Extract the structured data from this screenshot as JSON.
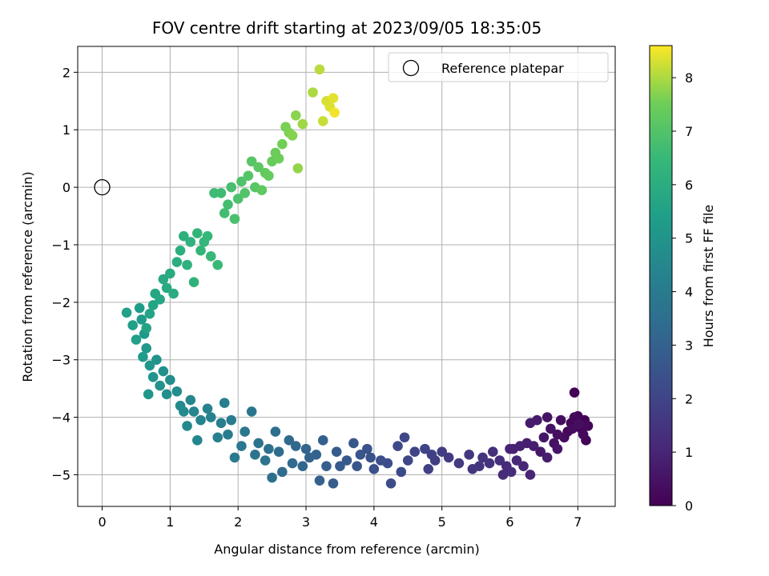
{
  "chart_data": {
    "type": "scatter",
    "title": "FOV centre drift starting at 2023/09/05 18:35:05",
    "xlabel": "Angular distance from reference (arcmin)",
    "ylabel": "Rotation from reference (arcmin)",
    "xlim": [
      -0.36,
      7.55
    ],
    "ylim": [
      -5.55,
      2.45
    ],
    "x_ticks": [
      0,
      1,
      2,
      3,
      4,
      5,
      6,
      7
    ],
    "y_ticks": [
      -5,
      -4,
      -3,
      -2,
      -1,
      0,
      1,
      2
    ],
    "grid": true,
    "legend": {
      "position": "top-right",
      "entries": [
        "Reference platepar"
      ]
    },
    "reference_point": {
      "x": 0,
      "y": 0,
      "label": "Reference platepar"
    },
    "colorbar": {
      "label": "Hours from first FF file",
      "colormap": "viridis",
      "range": [
        0,
        8.6
      ],
      "ticks": [
        0,
        1,
        2,
        3,
        4,
        5,
        6,
        7,
        8
      ]
    },
    "points_desc": "each point: [x arcmin, y arcmin, hours from first FF file]",
    "points": [
      [
        7.1,
        -4.05,
        0.0
      ],
      [
        6.95,
        -3.57,
        0.02
      ],
      [
        7.05,
        -4.2,
        0.05
      ],
      [
        7.12,
        -4.4,
        0.08
      ],
      [
        6.9,
        -4.1,
        0.1
      ],
      [
        7.0,
        -3.98,
        0.13
      ],
      [
        6.85,
        -4.25,
        0.16
      ],
      [
        7.15,
        -4.15,
        0.18
      ],
      [
        6.95,
        -4.0,
        0.21
      ],
      [
        7.08,
        -4.3,
        0.24
      ],
      [
        6.8,
        -4.35,
        0.27
      ],
      [
        6.92,
        -4.2,
        0.3
      ],
      [
        6.75,
        -4.05,
        0.33
      ],
      [
        7.02,
        -4.12,
        0.36
      ],
      [
        6.7,
        -4.3,
        0.4
      ],
      [
        6.65,
        -4.45,
        0.44
      ],
      [
        6.6,
        -4.2,
        0.48
      ],
      [
        6.55,
        -4.0,
        0.52
      ],
      [
        6.7,
        -4.55,
        0.56
      ],
      [
        6.5,
        -4.35,
        0.6
      ],
      [
        6.45,
        -4.6,
        0.64
      ],
      [
        6.4,
        -4.05,
        0.68
      ],
      [
        6.3,
        -4.1,
        0.72
      ],
      [
        6.35,
        -4.5,
        0.76
      ],
      [
        6.55,
        -4.7,
        0.8
      ],
      [
        6.25,
        -4.45,
        0.84
      ],
      [
        6.15,
        -4.5,
        0.88
      ],
      [
        6.05,
        -4.55,
        0.92
      ],
      [
        6.0,
        -4.55,
        0.96
      ],
      [
        6.3,
        -5.0,
        1.0
      ],
      [
        6.2,
        -4.85,
        1.05
      ],
      [
        6.1,
        -4.75,
        1.1
      ],
      [
        5.95,
        -4.85,
        1.15
      ],
      [
        5.9,
        -5.0,
        1.2
      ],
      [
        6.02,
        -4.95,
        1.25
      ],
      [
        5.85,
        -4.75,
        1.3
      ],
      [
        5.75,
        -4.6,
        1.35
      ],
      [
        5.7,
        -4.8,
        1.4
      ],
      [
        5.6,
        -4.7,
        1.45
      ],
      [
        5.55,
        -4.85,
        1.5
      ],
      [
        5.45,
        -4.9,
        1.55
      ],
      [
        5.4,
        -4.65,
        1.6
      ],
      [
        5.25,
        -4.8,
        1.65
      ],
      [
        5.1,
        -4.7,
        1.7
      ],
      [
        5.0,
        -4.6,
        1.75
      ],
      [
        4.9,
        -4.75,
        1.8
      ],
      [
        4.8,
        -4.9,
        1.85
      ],
      [
        4.85,
        -4.65,
        1.9
      ],
      [
        4.75,
        -4.55,
        1.95
      ],
      [
        4.6,
        -4.6,
        2.0
      ],
      [
        4.5,
        -4.75,
        2.05
      ],
      [
        4.45,
        -4.35,
        2.1
      ],
      [
        4.35,
        -4.5,
        2.15
      ],
      [
        4.4,
        -4.95,
        2.2
      ],
      [
        4.25,
        -5.15,
        2.25
      ],
      [
        4.2,
        -4.8,
        2.3
      ],
      [
        4.1,
        -4.75,
        2.35
      ],
      [
        4.0,
        -4.9,
        2.4
      ],
      [
        3.95,
        -4.7,
        2.45
      ],
      [
        3.9,
        -4.55,
        2.5
      ],
      [
        3.8,
        -4.65,
        2.55
      ],
      [
        3.75,
        -4.85,
        2.6
      ],
      [
        3.7,
        -4.45,
        2.65
      ],
      [
        3.6,
        -4.75,
        2.7
      ],
      [
        3.5,
        -4.85,
        2.75
      ],
      [
        3.45,
        -4.6,
        2.8
      ],
      [
        3.4,
        -5.15,
        2.85
      ],
      [
        3.3,
        -4.85,
        2.9
      ],
      [
        3.25,
        -4.4,
        2.95
      ],
      [
        3.2,
        -5.1,
        3.0
      ],
      [
        3.15,
        -4.65,
        3.05
      ],
      [
        3.05,
        -4.7,
        3.1
      ],
      [
        3.0,
        -4.55,
        3.15
      ],
      [
        2.95,
        -4.85,
        3.2
      ],
      [
        2.85,
        -4.5,
        3.25
      ],
      [
        2.8,
        -4.8,
        3.3
      ],
      [
        2.75,
        -4.4,
        3.35
      ],
      [
        2.65,
        -4.95,
        3.4
      ],
      [
        2.6,
        -4.6,
        3.45
      ],
      [
        2.55,
        -4.25,
        3.5
      ],
      [
        2.5,
        -5.05,
        3.55
      ],
      [
        2.45,
        -4.55,
        3.6
      ],
      [
        2.4,
        -4.75,
        3.65
      ],
      [
        2.3,
        -4.45,
        3.7
      ],
      [
        2.25,
        -4.65,
        3.75
      ],
      [
        2.2,
        -3.9,
        3.8
      ],
      [
        2.1,
        -4.25,
        3.85
      ],
      [
        2.05,
        -4.5,
        3.9
      ],
      [
        1.95,
        -4.7,
        3.95
      ],
      [
        1.9,
        -4.05,
        4.0
      ],
      [
        1.85,
        -4.3,
        4.05
      ],
      [
        1.8,
        -3.75,
        4.1
      ],
      [
        1.75,
        -4.1,
        4.15
      ],
      [
        1.7,
        -4.35,
        4.2
      ],
      [
        1.6,
        -4.0,
        4.25
      ],
      [
        1.55,
        -3.85,
        4.3
      ],
      [
        1.45,
        -4.05,
        4.35
      ],
      [
        1.4,
        -4.4,
        4.4
      ],
      [
        1.35,
        -3.9,
        4.45
      ],
      [
        1.3,
        -3.7,
        4.5
      ],
      [
        1.25,
        -4.15,
        4.55
      ],
      [
        1.2,
        -3.9,
        4.6
      ],
      [
        1.15,
        -3.8,
        4.65
      ],
      [
        1.1,
        -3.55,
        4.7
      ],
      [
        1.0,
        -3.35,
        4.75
      ],
      [
        0.95,
        -3.6,
        4.8
      ],
      [
        0.9,
        -3.2,
        4.85
      ],
      [
        0.85,
        -3.45,
        4.9
      ],
      [
        0.8,
        -3.0,
        4.95
      ],
      [
        0.75,
        -3.3,
        5.0
      ],
      [
        0.7,
        -3.1,
        5.05
      ],
      [
        0.68,
        -3.6,
        5.1
      ],
      [
        0.65,
        -2.8,
        5.15
      ],
      [
        0.62,
        -2.55,
        5.2
      ],
      [
        0.6,
        -2.95,
        5.25
      ],
      [
        0.58,
        -2.3,
        5.3
      ],
      [
        0.55,
        -2.1,
        5.35
      ],
      [
        0.5,
        -2.65,
        5.4
      ],
      [
        0.45,
        -2.4,
        5.45
      ],
      [
        0.36,
        -2.18,
        5.5
      ],
      [
        0.65,
        -2.45,
        5.55
      ],
      [
        0.7,
        -2.2,
        5.6
      ],
      [
        0.75,
        -2.05,
        5.65
      ],
      [
        0.78,
        -1.85,
        5.7
      ],
      [
        0.85,
        -1.95,
        5.75
      ],
      [
        0.9,
        -1.6,
        5.8
      ],
      [
        0.95,
        -1.75,
        5.85
      ],
      [
        1.0,
        -1.5,
        5.9
      ],
      [
        1.05,
        -1.85,
        5.95
      ],
      [
        1.1,
        -1.3,
        6.0
      ],
      [
        1.15,
        -1.1,
        6.05
      ],
      [
        1.2,
        -0.85,
        6.1
      ],
      [
        1.25,
        -1.35,
        6.15
      ],
      [
        1.3,
        -0.95,
        6.2
      ],
      [
        1.35,
        -1.65,
        6.25
      ],
      [
        1.4,
        -0.8,
        6.3
      ],
      [
        1.45,
        -1.1,
        6.35
      ],
      [
        1.5,
        -0.95,
        6.4
      ],
      [
        1.55,
        -0.85,
        6.45
      ],
      [
        1.6,
        -1.2,
        6.5
      ],
      [
        1.7,
        -1.35,
        6.55
      ],
      [
        1.65,
        -0.1,
        6.6
      ],
      [
        1.75,
        -0.1,
        6.65
      ],
      [
        1.8,
        -0.45,
        6.7
      ],
      [
        1.85,
        -0.3,
        6.75
      ],
      [
        1.9,
        0.0,
        6.8
      ],
      [
        1.95,
        -0.55,
        6.85
      ],
      [
        2.0,
        -0.2,
        6.9
      ],
      [
        2.05,
        0.1,
        6.95
      ],
      [
        2.1,
        -0.1,
        7.0
      ],
      [
        2.15,
        0.2,
        7.05
      ],
      [
        2.2,
        0.45,
        7.1
      ],
      [
        2.25,
        0.0,
        7.15
      ],
      [
        2.3,
        0.35,
        7.2
      ],
      [
        2.35,
        -0.05,
        7.25
      ],
      [
        2.4,
        0.25,
        7.3
      ],
      [
        2.45,
        0.2,
        7.35
      ],
      [
        2.5,
        0.45,
        7.4
      ],
      [
        2.55,
        0.6,
        7.45
      ],
      [
        2.6,
        0.5,
        7.5
      ],
      [
        2.65,
        0.75,
        7.55
      ],
      [
        2.7,
        1.05,
        7.6
      ],
      [
        2.75,
        0.95,
        7.65
      ],
      [
        2.8,
        0.9,
        7.7
      ],
      [
        2.85,
        1.25,
        7.75
      ],
      [
        2.88,
        0.33,
        7.8
      ],
      [
        2.95,
        1.1,
        7.9
      ],
      [
        3.1,
        1.65,
        8.0
      ],
      [
        3.2,
        2.05,
        8.1
      ],
      [
        3.25,
        1.15,
        8.2
      ],
      [
        3.3,
        1.5,
        8.3
      ],
      [
        3.35,
        1.4,
        8.35
      ],
      [
        3.4,
        1.55,
        8.4
      ],
      [
        3.42,
        1.3,
        8.5
      ]
    ]
  }
}
